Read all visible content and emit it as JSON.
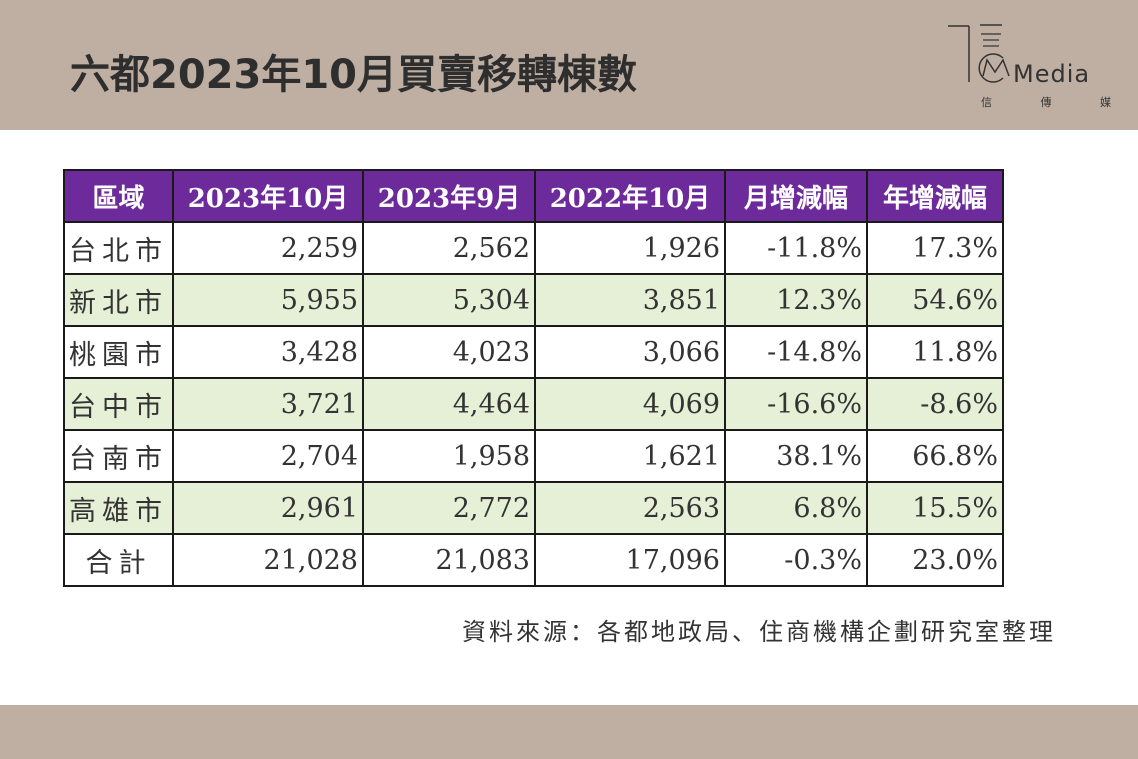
{
  "title": "六都2023年10月買賣移轉棟數",
  "logo": {
    "text": "Media",
    "sub": [
      "信",
      "傳",
      "媒"
    ]
  },
  "table": {
    "headers": [
      "區域",
      "2023年10月",
      "2023年9月",
      "2022年10月",
      "月增減幅",
      "年增減幅"
    ],
    "rows": [
      [
        "台北市",
        "2,259",
        "2,562",
        "1,926",
        "-11.8%",
        "17.3%"
      ],
      [
        "新北市",
        "5,955",
        "5,304",
        "3,851",
        "12.3%",
        "54.6%"
      ],
      [
        "桃園市",
        "3,428",
        "4,023",
        "3,066",
        "-14.8%",
        "11.8%"
      ],
      [
        "台中市",
        "3,721",
        "4,464",
        "4,069",
        "-16.6%",
        "-8.6%"
      ],
      [
        "台南市",
        "2,704",
        "1,958",
        "1,621",
        "38.1%",
        "66.8%"
      ],
      [
        "高雄市",
        "2,961",
        "2,772",
        "2,563",
        "6.8%",
        "15.5%"
      ],
      [
        "合計",
        "21,028",
        "21,083",
        "17,096",
        "-0.3%",
        "23.0%"
      ]
    ]
  },
  "source": "資料來源：各都地政局、住商機構企劃研究室整理",
  "colors": {
    "header_bg": "#bfafa2",
    "table_header": "#6c2a9b",
    "row_alt": "#e5f0d7"
  }
}
